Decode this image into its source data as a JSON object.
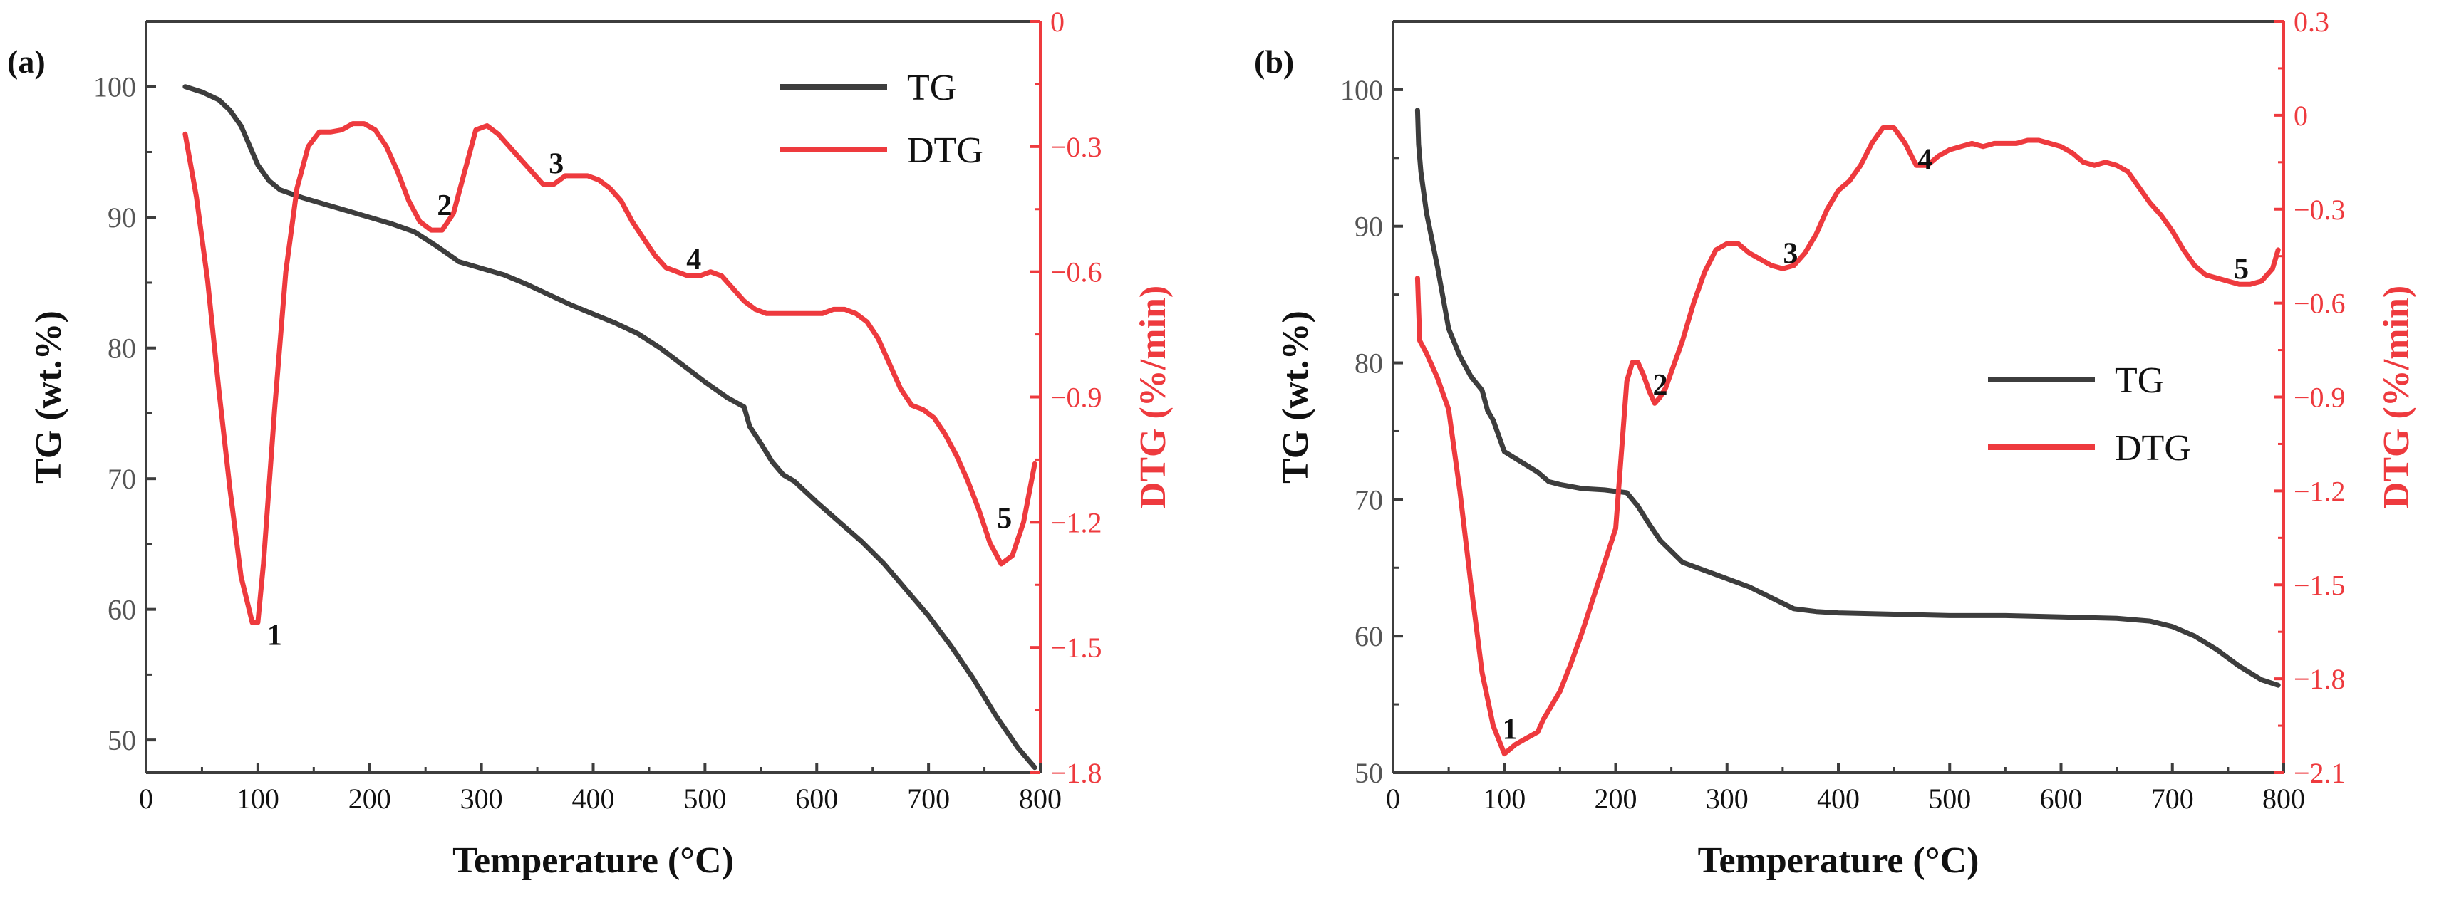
{
  "chart_data": [
    {
      "panel_label": "(a)",
      "type": "line",
      "xlabel": "Temperature (°C)",
      "ylabel": "TG (wt.%)",
      "ylabel_right": "DTG (%/min)",
      "xlim": [
        0,
        800
      ],
      "ylim": [
        47.5,
        105
      ],
      "ylim_right": [
        -1.8,
        0
      ],
      "x_ticks": [
        "0",
        "100",
        "200",
        "300",
        "400",
        "500",
        "600",
        "700",
        "800"
      ],
      "y_ticks": [
        "50",
        "60",
        "70",
        "80",
        "90",
        "100"
      ],
      "y_ticks_right": [
        "-1.8",
        "-1.5",
        "-1.2",
        "-0.9",
        "-0.6",
        "-0.3",
        "0"
      ],
      "legend_position": "top-right",
      "series": [
        {
          "name": "TG",
          "axis": "left",
          "color": "#3d3d3d",
          "x": [
            35,
            50,
            65,
            75,
            85,
            90,
            100,
            110,
            120,
            140,
            160,
            180,
            200,
            220,
            240,
            260,
            280,
            300,
            320,
            340,
            360,
            380,
            400,
            420,
            440,
            460,
            480,
            500,
            520,
            535,
            540,
            550,
            560,
            570,
            580,
            600,
            620,
            640,
            660,
            680,
            700,
            720,
            740,
            760,
            780,
            795
          ],
          "y": [
            100,
            99.6,
            99,
            98.2,
            97,
            96,
            94,
            92.8,
            92.1,
            91.5,
            91,
            90.5,
            90,
            89.5,
            88.9,
            87.8,
            86.6,
            86.1,
            85.6,
            84.9,
            84.1,
            83.3,
            82.6,
            81.9,
            81.1,
            80,
            78.7,
            77.4,
            76.2,
            75.5,
            74,
            72.7,
            71.3,
            70.3,
            69.8,
            68.2,
            66.7,
            65.2,
            63.5,
            61.5,
            59.5,
            57.2,
            54.7,
            51.9,
            49.4,
            47.9
          ]
        },
        {
          "name": "DTG",
          "axis": "right",
          "color": "#ee3a3e",
          "x": [
            35,
            45,
            55,
            65,
            75,
            85,
            95,
            100,
            105,
            115,
            125,
            135,
            145,
            155,
            165,
            175,
            185,
            195,
            205,
            215,
            225,
            235,
            245,
            255,
            265,
            275,
            285,
            295,
            305,
            315,
            325,
            335,
            345,
            355,
            365,
            375,
            385,
            395,
            405,
            415,
            425,
            435,
            445,
            455,
            465,
            475,
            485,
            495,
            505,
            515,
            525,
            535,
            545,
            555,
            565,
            575,
            585,
            595,
            605,
            615,
            625,
            635,
            645,
            655,
            665,
            675,
            685,
            695,
            705,
            715,
            725,
            735,
            745,
            755,
            765,
            775,
            785,
            795
          ],
          "y": [
            -0.27,
            -0.42,
            -0.62,
            -0.88,
            -1.12,
            -1.33,
            -1.44,
            -1.44,
            -1.3,
            -0.93,
            -0.6,
            -0.4,
            -0.3,
            -0.265,
            -0.265,
            -0.26,
            -0.245,
            -0.245,
            -0.26,
            -0.3,
            -0.36,
            -0.43,
            -0.48,
            -0.5,
            -0.5,
            -0.46,
            -0.36,
            -0.26,
            -0.25,
            -0.27,
            -0.3,
            -0.33,
            -0.36,
            -0.39,
            -0.39,
            -0.37,
            -0.37,
            -0.37,
            -0.38,
            -0.4,
            -0.43,
            -0.48,
            -0.52,
            -0.56,
            -0.59,
            -0.6,
            -0.61,
            -0.61,
            -0.6,
            -0.61,
            -0.64,
            -0.67,
            -0.69,
            -0.7,
            -0.7,
            -0.7,
            -0.7,
            -0.7,
            -0.7,
            -0.69,
            -0.69,
            -0.7,
            -0.72,
            -0.76,
            -0.82,
            -0.88,
            -0.92,
            -0.93,
            -0.95,
            -0.99,
            -1.04,
            -1.1,
            -1.17,
            -1.25,
            -1.3,
            -1.28,
            -1.2,
            -1.06
          ]
        }
      ],
      "annotations": [
        {
          "text": "1",
          "x": 115,
          "y_right": -1.47
        },
        {
          "text": "2",
          "x": 267,
          "y_right": -0.44
        },
        {
          "text": "3",
          "x": 367,
          "y_right": -0.34
        },
        {
          "text": "4",
          "x": 490,
          "y_right": -0.57
        },
        {
          "text": "5",
          "x": 768,
          "y_right": -1.19
        }
      ]
    },
    {
      "panel_label": "(b)",
      "type": "line",
      "xlabel": "Temperature (°C)",
      "ylabel": "TG (wt.%)",
      "ylabel_right": "DTG (%/min)",
      "xlim": [
        0,
        800
      ],
      "ylim": [
        50,
        105
      ],
      "ylim_right": [
        -2.1,
        0.3
      ],
      "x_ticks": [
        "0",
        "100",
        "200",
        "300",
        "400",
        "500",
        "600",
        "700",
        "800"
      ],
      "y_ticks": [
        "50",
        "60",
        "70",
        "80",
        "90",
        "100"
      ],
      "y_ticks_right": [
        "-2.1",
        "-1.8",
        "-1.5",
        "-1.2",
        "-0.9",
        "-0.6",
        "-0.3",
        "0",
        "0.3"
      ],
      "legend_position": "center-right",
      "series": [
        {
          "name": "TG",
          "axis": "left",
          "color": "#3d3d3d",
          "x": [
            22,
            23,
            25,
            30,
            40,
            50,
            60,
            70,
            80,
            85,
            90,
            100,
            110,
            120,
            130,
            140,
            150,
            170,
            190,
            210,
            220,
            230,
            240,
            260,
            280,
            300,
            320,
            340,
            360,
            380,
            400,
            450,
            500,
            550,
            600,
            650,
            680,
            700,
            720,
            740,
            760,
            780,
            795
          ],
          "y": [
            98.5,
            96,
            94,
            91,
            87,
            82.5,
            80.5,
            79,
            78,
            76.5,
            75.8,
            73.5,
            73,
            72.5,
            72,
            71.3,
            71.1,
            70.8,
            70.7,
            70.5,
            69.5,
            68.2,
            67,
            65.4,
            64.8,
            64.2,
            63.6,
            62.8,
            62,
            61.8,
            61.7,
            61.6,
            61.5,
            61.5,
            61.4,
            61.3,
            61.1,
            60.7,
            60,
            59,
            57.8,
            56.8,
            56.4
          ]
        },
        {
          "name": "DTG",
          "axis": "right",
          "color": "#ee3a3e",
          "x": [
            22,
            24,
            30,
            40,
            50,
            60,
            70,
            80,
            90,
            100,
            110,
            120,
            130,
            135,
            140,
            150,
            160,
            170,
            180,
            190,
            200,
            210,
            215,
            220,
            225,
            230,
            235,
            240,
            245,
            250,
            260,
            270,
            280,
            290,
            300,
            310,
            320,
            330,
            340,
            350,
            360,
            370,
            380,
            390,
            400,
            410,
            420,
            430,
            440,
            450,
            460,
            470,
            480,
            490,
            500,
            510,
            520,
            530,
            540,
            550,
            560,
            570,
            580,
            590,
            600,
            610,
            620,
            630,
            640,
            650,
            660,
            670,
            680,
            690,
            700,
            710,
            720,
            730,
            740,
            750,
            760,
            770,
            780,
            790,
            795
          ],
          "y": [
            -0.52,
            -0.72,
            -0.76,
            -0.84,
            -0.94,
            -1.2,
            -1.5,
            -1.78,
            -1.95,
            -2.04,
            -2.01,
            -1.99,
            -1.97,
            -1.93,
            -1.9,
            -1.84,
            -1.75,
            -1.65,
            -1.54,
            -1.43,
            -1.32,
            -0.85,
            -0.79,
            -0.79,
            -0.83,
            -0.88,
            -0.92,
            -0.9,
            -0.87,
            -0.82,
            -0.72,
            -0.6,
            -0.5,
            -0.43,
            -0.41,
            -0.41,
            -0.44,
            -0.46,
            -0.48,
            -0.49,
            -0.48,
            -0.44,
            -0.38,
            -0.3,
            -0.24,
            -0.21,
            -0.16,
            -0.09,
            -0.04,
            -0.04,
            -0.09,
            -0.16,
            -0.16,
            -0.13,
            -0.11,
            -0.1,
            -0.09,
            -0.1,
            -0.09,
            -0.09,
            -0.09,
            -0.08,
            -0.08,
            -0.09,
            -0.1,
            -0.12,
            -0.15,
            -0.16,
            -0.15,
            -0.16,
            -0.18,
            -0.23,
            -0.28,
            -0.32,
            -0.37,
            -0.43,
            -0.48,
            -0.51,
            -0.52,
            -0.53,
            -0.54,
            -0.54,
            -0.53,
            -0.49,
            -0.43
          ]
        }
      ],
      "annotations": [
        {
          "text": "1",
          "x": 105,
          "y_right": -1.96
        },
        {
          "text": "2",
          "x": 240,
          "y_right": -0.86
        },
        {
          "text": "3",
          "x": 357,
          "y_right": -0.44
        },
        {
          "text": "4",
          "x": 478,
          "y_right": -0.14
        },
        {
          "text": "5",
          "x": 762,
          "y_right": -0.49
        }
      ]
    }
  ]
}
